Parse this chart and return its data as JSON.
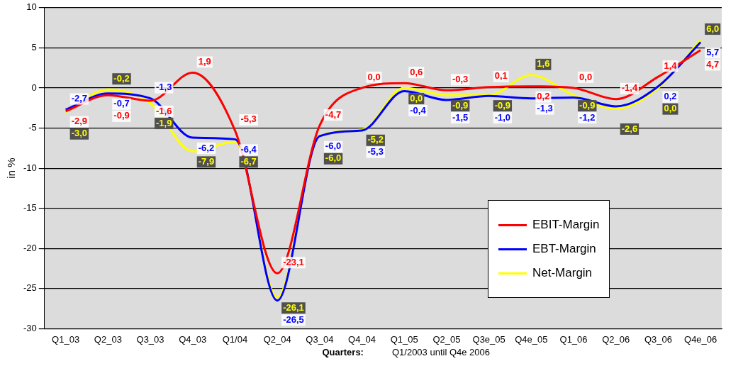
{
  "chart_data": {
    "type": "line",
    "categories": [
      "Q1_03",
      "Q2_03",
      "Q3_03",
      "Q4_03",
      "Q1/04",
      "Q2_04",
      "Q3_04",
      "Q4_04",
      "Q1_05",
      "Q2_05",
      "Q3e_05",
      "Q4e_05",
      "Q1_06",
      "Q2_06",
      "Q3_06",
      "Q4e_06"
    ],
    "series": [
      {
        "name": "EBIT-Margin",
        "color": "#ff0000",
        "values": [
          -2.9,
          -0.9,
          -1.6,
          1.9,
          -5.3,
          -23.1,
          -4.7,
          0.0,
          0.6,
          -0.3,
          0.1,
          0.2,
          0.0,
          -1.4,
          1.4,
          4.7
        ],
        "value_labels": [
          "-2,9",
          "-0,9",
          "-1,6",
          "1,9",
          "-5,3",
          "-23,1",
          "-4,7",
          "0,0",
          "0,6",
          "-0,3",
          "0,1",
          "0,2",
          "0,0",
          "-1,4",
          "1,4",
          "4,7"
        ]
      },
      {
        "name": "EBT-Margin",
        "color": "#0000ff",
        "values": [
          -2.7,
          -0.7,
          -1.3,
          -6.2,
          -6.4,
          -26.5,
          -6.0,
          -5.3,
          -0.4,
          -1.5,
          -1.0,
          -1.3,
          -1.2,
          -2.3,
          0.2,
          5.7
        ],
        "value_labels": [
          "-2,7",
          "-0,7",
          "-1,3",
          "-6,2",
          "-6,4",
          "-26,5",
          "-6,0",
          "-5,3",
          "-0,4",
          "-1,5",
          "-1,0",
          "-1,3",
          "-1,2",
          null,
          "0,2",
          "5,7"
        ]
      },
      {
        "name": "Net-Margin",
        "color": "#ffff00",
        "values": [
          -3.0,
          -0.2,
          -1.9,
          -7.9,
          -6.7,
          -26.1,
          -6.0,
          -5.2,
          0.0,
          -0.9,
          -0.9,
          1.6,
          -0.9,
          -2.6,
          0.0,
          6.0
        ],
        "value_labels": [
          "-3,0",
          "-0,2",
          "-1,9",
          "-7,9",
          "-6,7",
          "-26,1",
          "-6,0",
          "-5,2",
          "0,0",
          "-0,9",
          "-0,9",
          "1,6",
          "-0,9",
          "-2,6",
          "0,0",
          "6,0"
        ]
      }
    ],
    "ylim": [
      -30,
      10
    ],
    "yticks": [
      -30,
      -25,
      -20,
      -15,
      -10,
      -5,
      0,
      5,
      10
    ],
    "ylabel": "in %",
    "xlabel": "Quarters:",
    "annotations": [
      "Q1/2003 until Q4e 2006"
    ],
    "grid": "y",
    "legend": "right",
    "marker": "none"
  }
}
